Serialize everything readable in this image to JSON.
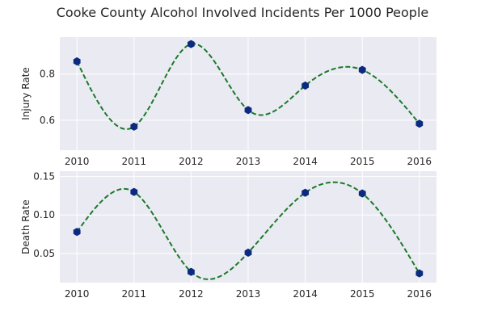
{
  "chart_data": {
    "title": "Cooke County Alcohol Involved Incidents Per 1000 People",
    "panels": [
      {
        "type": "line",
        "ylabel": "Injury Rate",
        "x": [
          2010,
          2011,
          2012,
          2013,
          2014,
          2015,
          2016
        ],
        "values": [
          0.855,
          0.572,
          0.93,
          0.644,
          0.75,
          0.818,
          0.585
        ],
        "xticks": [
          "2010",
          "2011",
          "2012",
          "2013",
          "2014",
          "2015",
          "2016"
        ],
        "yticks": [
          0.6,
          0.8
        ],
        "ytick_labels": [
          "0.6",
          "0.8"
        ],
        "xlim": [
          2009.7,
          2016.3
        ],
        "ylim": [
          0.47,
          0.96
        ],
        "grid": true,
        "line_color": "#1a7a2a",
        "marker_color": "#0b2a80"
      },
      {
        "type": "line",
        "ylabel": "Death Rate",
        "x": [
          2010,
          2011,
          2012,
          2013,
          2014,
          2015,
          2016
        ],
        "values": [
          0.078,
          0.13,
          0.026,
          0.051,
          0.129,
          0.128,
          0.024
        ],
        "xticks": [
          "2010",
          "2011",
          "2012",
          "2013",
          "2014",
          "2015",
          "2016"
        ],
        "yticks": [
          0.05,
          0.1,
          0.15
        ],
        "ytick_labels": [
          "0.05",
          "0.10",
          "0.15"
        ],
        "xlim": [
          2009.7,
          2016.3
        ],
        "ylim": [
          0.012,
          0.157
        ],
        "grid": true,
        "line_color": "#1a7a2a",
        "marker_color": "#0b2a80"
      }
    ]
  }
}
